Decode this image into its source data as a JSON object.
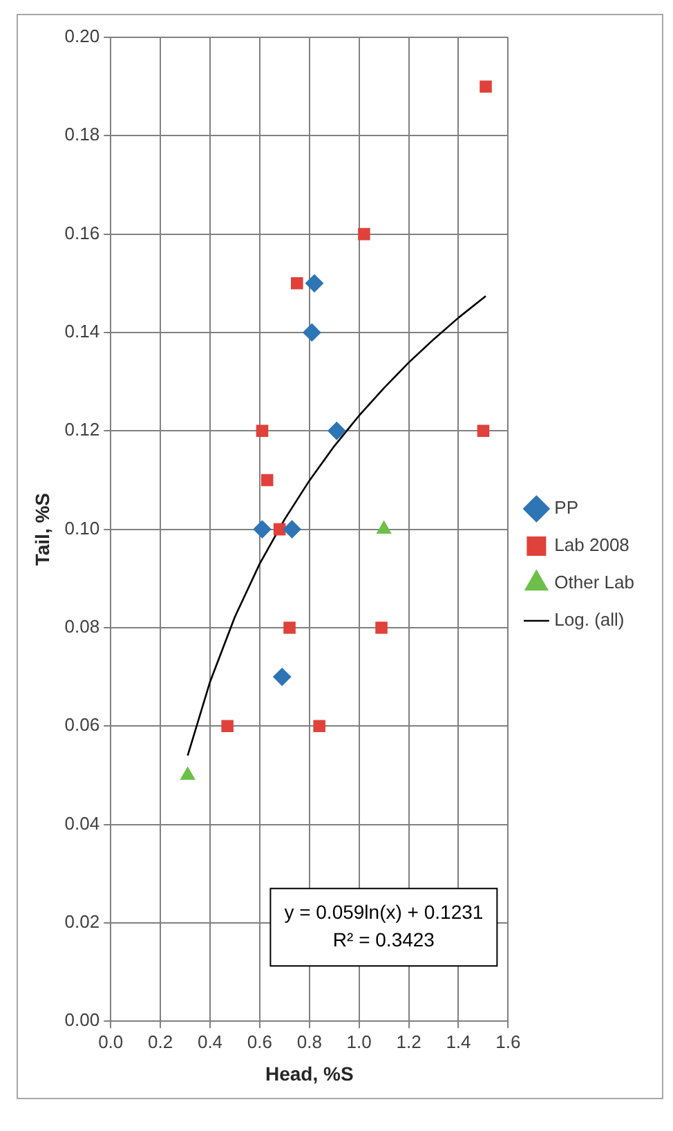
{
  "chart_data": {
    "type": "scatter",
    "xlabel": "Head, %S",
    "ylabel": "Tail, %S",
    "annotations": [
      "y = 0.059ln(x) + 0.1231",
      "R² = 0.3423"
    ],
    "xlim": [
      0,
      1.6
    ],
    "xticks": [
      {
        "value": 0,
        "label": "0.0"
      },
      {
        "value": 0.2,
        "label": "0.2"
      },
      {
        "value": 0.4,
        "label": "0.4"
      },
      {
        "value": 0.6,
        "label": "0.6"
      },
      {
        "value": 0.8,
        "label": "0.8"
      },
      {
        "value": 1,
        "label": "1.0"
      },
      {
        "value": 1.2,
        "label": "1.2"
      },
      {
        "value": 1.4,
        "label": "1.4"
      },
      {
        "value": 1.6,
        "label": "1.6"
      }
    ],
    "ylim": [
      0,
      0.2
    ],
    "yticks": [
      {
        "value": 0,
        "label": "0.00"
      },
      {
        "value": 0.02,
        "label": "0.02"
      },
      {
        "value": 0.04,
        "label": "0.04"
      },
      {
        "value": 0.06,
        "label": "0.06"
      },
      {
        "value": 0.08,
        "label": "0.08"
      },
      {
        "value": 0.1,
        "label": "0.10"
      },
      {
        "value": 0.12,
        "label": "0.12"
      },
      {
        "value": 0.14,
        "label": "0.14"
      },
      {
        "value": 0.16,
        "label": "0.16"
      },
      {
        "value": 0.18,
        "label": "0.18"
      },
      {
        "value": 0.2,
        "label": "0.20"
      }
    ],
    "grid": true,
    "legend": "right",
    "series": [
      {
        "name": "PP",
        "color": "#2e75b6",
        "marker": "diamond",
        "x": [
          0.82,
          0.81,
          0.91,
          0.73,
          0.61,
          0.69
        ],
        "values": [
          0.15,
          0.14,
          0.12,
          0.1,
          0.1,
          0.07
        ]
      },
      {
        "name": "Lab 2008",
        "color": "#e0413a",
        "marker": "square",
        "x": [
          1.51,
          1.5,
          1.02,
          0.75,
          0.61,
          0.63,
          0.68,
          0.72,
          1.09,
          0.84,
          0.47
        ],
        "values": [
          0.19,
          0.12,
          0.16,
          0.15,
          0.12,
          0.11,
          0.1,
          0.08,
          0.08,
          0.06,
          0.06
        ]
      },
      {
        "name": "Other Lab",
        "color": "#6cc04a",
        "marker": "triangle",
        "x": [
          1.1,
          0.31
        ],
        "values": [
          0.1,
          0.05
        ]
      },
      {
        "name": "Log. (all)",
        "type": "line",
        "color": "#000000",
        "marker": "none",
        "line_style": "solid",
        "x": [
          0.31,
          0.4,
          0.5,
          0.6,
          0.7,
          0.8,
          0.9,
          1.0,
          1.1,
          1.2,
          1.3,
          1.4,
          1.51
        ],
        "values": [
          0.054,
          0.069,
          0.0822,
          0.093,
          0.102,
          0.1099,
          0.1169,
          0.1231,
          0.1287,
          0.1339,
          0.1386,
          0.143,
          0.1474
        ]
      }
    ]
  }
}
